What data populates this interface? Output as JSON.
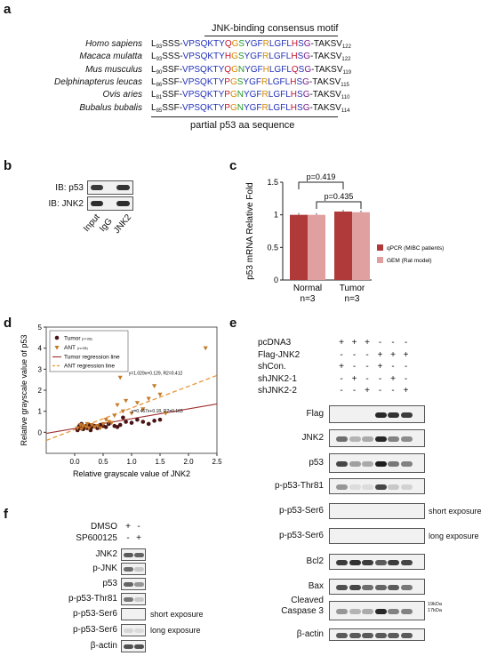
{
  "panels": {
    "a": "a",
    "b": "b",
    "c": "c",
    "d": "d",
    "e": "e",
    "f": "f"
  },
  "panel_a": {
    "title": "JNK-binding consensus motif",
    "footer": "partial p53 aa sequence",
    "rows": [
      {
        "species": "Homo sapiens",
        "start": "93",
        "end": "122",
        "seq": [
          [
            "k",
            "L"
          ],
          [
            "k",
            "SSS-"
          ],
          [
            "b",
            "VPSQKTY"
          ],
          [
            "r",
            "Q"
          ],
          [
            "o",
            "G"
          ],
          [
            "g",
            "S"
          ],
          [
            "b",
            "YGF"
          ],
          [
            "o",
            "R"
          ],
          [
            "b",
            "LGFL"
          ],
          [
            "r",
            "H"
          ],
          [
            "b",
            "S"
          ],
          [
            "p",
            "G"
          ],
          [
            "k",
            "-TAKSV"
          ]
        ]
      },
      {
        "species": "Macaca mulatta",
        "start": "93",
        "end": "122",
        "seq": [
          [
            "k",
            "L"
          ],
          [
            "k",
            "SSS-"
          ],
          [
            "b",
            "VPSQKTY"
          ],
          [
            "r",
            "H"
          ],
          [
            "o",
            "G"
          ],
          [
            "g",
            "S"
          ],
          [
            "b",
            "YGF"
          ],
          [
            "o",
            "R"
          ],
          [
            "b",
            "LGFL"
          ],
          [
            "r",
            "H"
          ],
          [
            "b",
            "S"
          ],
          [
            "p",
            "G"
          ],
          [
            "k",
            "-TAKSV"
          ]
        ]
      },
      {
        "species": "Mus musculus",
        "start": "90",
        "end": "119",
        "seq": [
          [
            "k",
            "L"
          ],
          [
            "k",
            "SSF-"
          ],
          [
            "b",
            "VPSQKTY"
          ],
          [
            "r",
            "Q"
          ],
          [
            "o",
            "G"
          ],
          [
            "g",
            "N"
          ],
          [
            "b",
            "YGF"
          ],
          [
            "o",
            "H"
          ],
          [
            "b",
            "LGFL"
          ],
          [
            "r",
            "Q"
          ],
          [
            "b",
            "S"
          ],
          [
            "p",
            "G"
          ],
          [
            "k",
            "-TAKSV"
          ]
        ]
      },
      {
        "species": "Delphinapterus leucas",
        "start": "86",
        "end": "115",
        "seq": [
          [
            "k",
            "L"
          ],
          [
            "k",
            "SSF-"
          ],
          [
            "b",
            "VPSQKTY"
          ],
          [
            "r",
            "P"
          ],
          [
            "o",
            "G"
          ],
          [
            "g",
            "S"
          ],
          [
            "b",
            "YGF"
          ],
          [
            "o",
            "R"
          ],
          [
            "b",
            "LGFL"
          ],
          [
            "r",
            "H"
          ],
          [
            "b",
            "S"
          ],
          [
            "p",
            "G"
          ],
          [
            "k",
            "-TAKSV"
          ]
        ]
      },
      {
        "species": "Ovis aries",
        "start": "81",
        "end": "110",
        "seq": [
          [
            "k",
            "L"
          ],
          [
            "k",
            "SSF-"
          ],
          [
            "b",
            "VPSQKTY"
          ],
          [
            "r",
            "P"
          ],
          [
            "o",
            "G"
          ],
          [
            "g",
            "N"
          ],
          [
            "b",
            "YGF"
          ],
          [
            "o",
            "R"
          ],
          [
            "b",
            "LGFL"
          ],
          [
            "r",
            "H"
          ],
          [
            "b",
            "S"
          ],
          [
            "p",
            "G"
          ],
          [
            "k",
            "-TAKSV"
          ]
        ]
      },
      {
        "species": "Bubalus bubalis",
        "start": "85",
        "end": "114",
        "seq": [
          [
            "k",
            "L"
          ],
          [
            "k",
            "SSF-"
          ],
          [
            "b",
            "VPSQKTY"
          ],
          [
            "r",
            "P"
          ],
          [
            "o",
            "G"
          ],
          [
            "g",
            "N"
          ],
          [
            "b",
            "YGF"
          ],
          [
            "o",
            "R"
          ],
          [
            "b",
            "LGFL"
          ],
          [
            "r",
            "H"
          ],
          [
            "b",
            "S"
          ],
          [
            "p",
            "G"
          ],
          [
            "k",
            "-TAKSV"
          ]
        ]
      }
    ]
  },
  "panel_b": {
    "rows": [
      "IB: p53",
      "IB: JNK2"
    ],
    "lanes": [
      "Input",
      "IgG",
      "JNK2"
    ]
  },
  "panel_f": {
    "treat": [
      "DMSO",
      "SP600125"
    ],
    "signs": [
      [
        "+",
        "-"
      ],
      [
        "-",
        "+"
      ]
    ],
    "rows": [
      "JNK2",
      "p-JNK",
      "p53",
      "p-p53-Thr81",
      "p-p53-Ser6",
      "p-p53-Ser6",
      "β-actin"
    ],
    "notes": [
      "",
      "",
      "",
      "",
      "short exposure",
      "long exposure",
      ""
    ]
  },
  "panel_e": {
    "conditions": [
      "pcDNA3",
      "Flag-JNK2",
      "shCon.",
      "shJNK2-1",
      "shJNK2-2"
    ],
    "signs": [
      [
        "+",
        "+",
        "+",
        "-",
        "-",
        "-"
      ],
      [
        "-",
        "-",
        "-",
        "+",
        "+",
        "+"
      ],
      [
        "+",
        "-",
        "-",
        "+",
        "-",
        "-"
      ],
      [
        "-",
        "+",
        "-",
        "-",
        "+",
        "-"
      ],
      [
        "-",
        "-",
        "+",
        "-",
        "-",
        "+"
      ]
    ],
    "rows": [
      "Flag",
      "JNK2",
      "p53",
      "p-p53-Thr81",
      "p-p53-Ser6",
      "p-p53-Ser6",
      "Bcl2",
      "Bax",
      "Cleaved\nCaspase 3",
      "β-actin"
    ],
    "notes": [
      "",
      "",
      "",
      "",
      "short exposure",
      "long exposure",
      "",
      "",
      "",
      ""
    ],
    "kda": [
      "19kDa",
      "17kDa"
    ]
  },
  "chart_data": [
    {
      "type": "bar",
      "panel": "c",
      "ylabel": "p53 mRNA Relative Fold",
      "categories": [
        "Normal",
        "Tumor"
      ],
      "category_sub": [
        "n=3",
        "n=3"
      ],
      "ylim": [
        0,
        1.5
      ],
      "yticks": [
        "0",
        "0.5",
        "1",
        "1.5"
      ],
      "series": [
        {
          "name": "qPCR (MIBC patients)",
          "values": [
            1.0,
            1.05
          ],
          "color": "#b03a3a"
        },
        {
          "name": "GEM (Rat model)",
          "values": [
            1.0,
            1.04
          ],
          "color": "#e1a0a0"
        }
      ],
      "annotations": [
        "p=0.419",
        "p=0.435"
      ]
    },
    {
      "type": "scatter",
      "panel": "d",
      "xlabel": "Relative grayscale value of JNK2",
      "ylabel": "Relative grayscale value of p53",
      "xlim": [
        -0.5,
        2.5
      ],
      "ylim": [
        -1,
        5
      ],
      "xticks": [
        "0.0",
        "0.5",
        "1.0",
        "1.5",
        "2.0",
        "2.5"
      ],
      "yticks": [
        "0",
        "1",
        "2",
        "3",
        "4",
        "5"
      ],
      "legend": [
        {
          "name": "Tumor",
          "sub": "(n=28)"
        },
        {
          "name": "ANT",
          "sub": "(n=28)"
        },
        {
          "name": "Tumor regression line"
        },
        {
          "name": "ANT regression line"
        }
      ],
      "equations": [
        "y=1.029x+0.129, R2=0.412",
        "y=0.467x+0.18, R2=0.163"
      ],
      "tumor_points": [
        [
          0.05,
          0.1
        ],
        [
          0.08,
          0.3
        ],
        [
          0.1,
          0.2
        ],
        [
          0.12,
          0.4
        ],
        [
          0.15,
          0.15
        ],
        [
          0.18,
          0.25
        ],
        [
          0.2,
          0.3
        ],
        [
          0.22,
          0.2
        ],
        [
          0.25,
          0.35
        ],
        [
          0.28,
          0.1
        ],
        [
          0.3,
          0.25
        ],
        [
          0.35,
          0.3
        ],
        [
          0.4,
          0.2
        ],
        [
          0.45,
          0.35
        ],
        [
          0.5,
          0.3
        ],
        [
          0.55,
          0.25
        ],
        [
          0.6,
          0.4
        ],
        [
          0.7,
          0.3
        ],
        [
          0.8,
          0.35
        ],
        [
          0.85,
          0.7
        ],
        [
          0.9,
          0.5
        ],
        [
          1.0,
          0.45
        ],
        [
          1.1,
          0.6
        ],
        [
          1.2,
          0.5
        ],
        [
          1.3,
          0.4
        ],
        [
          1.4,
          0.55
        ],
        [
          1.5,
          0.6
        ],
        [
          0.75,
          0.25
        ]
      ],
      "ant_points": [
        [
          0.05,
          0.2
        ],
        [
          0.1,
          0.35
        ],
        [
          0.12,
          0.15
        ],
        [
          0.15,
          0.3
        ],
        [
          0.2,
          0.25
        ],
        [
          0.22,
          0.4
        ],
        [
          0.25,
          0.2
        ],
        [
          0.3,
          0.35
        ],
        [
          0.35,
          0.25
        ],
        [
          0.4,
          0.3
        ],
        [
          0.45,
          0.2
        ],
        [
          0.5,
          0.4
        ],
        [
          0.55,
          0.6
        ],
        [
          0.6,
          0.5
        ],
        [
          0.7,
          0.8
        ],
        [
          0.75,
          1.3
        ],
        [
          0.8,
          2.6
        ],
        [
          0.85,
          1.0
        ],
        [
          0.9,
          1.5
        ],
        [
          1.0,
          0.9
        ],
        [
          1.1,
          1.4
        ],
        [
          1.2,
          1.1
        ],
        [
          1.3,
          1.6
        ],
        [
          1.4,
          2.2
        ],
        [
          1.5,
          1.8
        ],
        [
          1.6,
          0.9
        ],
        [
          2.3,
          4.0
        ],
        [
          0.65,
          0.45
        ]
      ]
    }
  ]
}
